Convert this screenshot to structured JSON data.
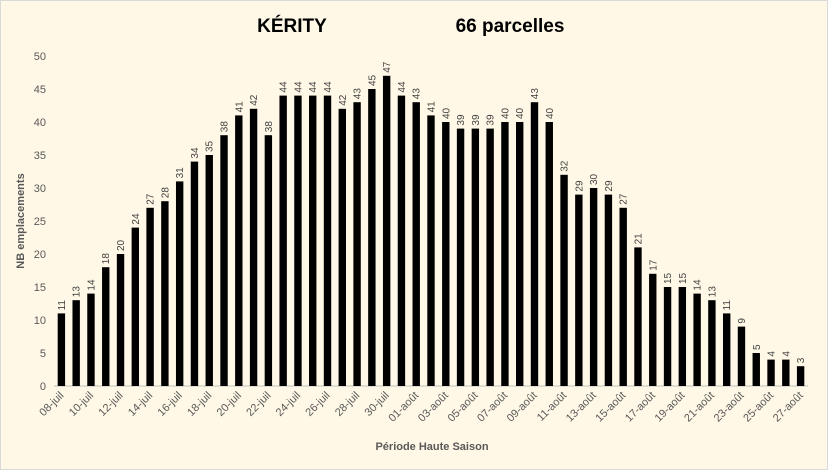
{
  "chart_data": {
    "type": "bar",
    "title": "KÉRITY",
    "subtitle": "66 parcelles",
    "x_label": "Période Haute Saison",
    "y_label": "NB emplacements",
    "categories": [
      "08-juil",
      null,
      "10-juil",
      null,
      "12-juil",
      null,
      "14-juil",
      null,
      "16-juil",
      null,
      "18-juil",
      null,
      "20-juil",
      null,
      "22-juil",
      null,
      "24-juil",
      null,
      "26-juil",
      null,
      "28-juil",
      null,
      "30-juil",
      null,
      "01-août",
      null,
      "03-août",
      null,
      "05-août",
      null,
      "07-août",
      null,
      "09-août",
      null,
      "11-août",
      null,
      "13-août",
      null,
      "15-août",
      null,
      "17-août",
      null,
      "19-août",
      null,
      "21-août",
      null,
      "23-août",
      null,
      "25-août",
      null,
      "27-août"
    ],
    "values": [
      11,
      13,
      14,
      18,
      20,
      24,
      27,
      28,
      31,
      34,
      35,
      38,
      41,
      42,
      38,
      44,
      44,
      44,
      44,
      42,
      43,
      45,
      47,
      44,
      43,
      41,
      40,
      39,
      39,
      39,
      40,
      40,
      43,
      40,
      32,
      29,
      30,
      29,
      27,
      21,
      17,
      15,
      15,
      14,
      13,
      11,
      9,
      5,
      4,
      4,
      3
    ],
    "color": "#000000",
    "ylim": [
      0,
      50
    ],
    "yticks": [
      0,
      5,
      10,
      15,
      20,
      25,
      30,
      35,
      40,
      45,
      50
    ],
    "grid": false
  }
}
